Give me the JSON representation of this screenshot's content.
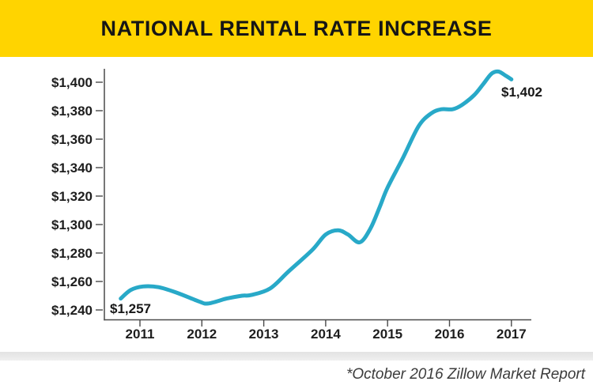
{
  "header": {
    "title": "NATIONAL RENTAL RATE INCREASE",
    "background_color": "#ffd400",
    "text_color": "#161616"
  },
  "chart_data": {
    "type": "line",
    "title": "NATIONAL RENTAL RATE INCREASE",
    "xlabel": "",
    "ylabel": "",
    "grid": false,
    "legend": "none",
    "line_color": "#28a9c8",
    "x_range": [
      2010.55,
      2017.3
    ],
    "y_range": [
      1233,
      1412
    ],
    "x_ticks": [
      {
        "value": 2011,
        "label": "2011"
      },
      {
        "value": 2012,
        "label": "2012"
      },
      {
        "value": 2013,
        "label": "2013"
      },
      {
        "value": 2014,
        "label": "2014"
      },
      {
        "value": 2015,
        "label": "2015"
      },
      {
        "value": 2016,
        "label": "2016"
      },
      {
        "value": 2017,
        "label": "2017"
      }
    ],
    "y_ticks": [
      {
        "value": 1240,
        "label": "$1,240"
      },
      {
        "value": 1260,
        "label": "$1,260"
      },
      {
        "value": 1280,
        "label": "$1,280"
      },
      {
        "value": 1300,
        "label": "$1,300"
      },
      {
        "value": 1320,
        "label": "$1,320"
      },
      {
        "value": 1340,
        "label": "$1,340"
      },
      {
        "value": 1360,
        "label": "$1,360"
      },
      {
        "value": 1380,
        "label": "$1,380"
      },
      {
        "value": 1400,
        "label": "$1,400"
      }
    ],
    "series": [
      {
        "name": "Rental rate",
        "color": "#28a9c8",
        "points": [
          [
            2010.69,
            1248
          ],
          [
            2010.85,
            1254
          ],
          [
            2011.05,
            1256.5
          ],
          [
            2011.3,
            1256
          ],
          [
            2011.6,
            1252
          ],
          [
            2011.95,
            1246
          ],
          [
            2012.1,
            1244.5
          ],
          [
            2012.4,
            1248
          ],
          [
            2012.65,
            1250
          ],
          [
            2012.8,
            1250.5
          ],
          [
            2013.1,
            1255
          ],
          [
            2013.4,
            1267
          ],
          [
            2013.78,
            1282
          ],
          [
            2014.0,
            1293
          ],
          [
            2014.2,
            1296
          ],
          [
            2014.36,
            1293
          ],
          [
            2014.55,
            1287.5
          ],
          [
            2014.72,
            1297
          ],
          [
            2014.87,
            1312
          ],
          [
            2015.0,
            1326
          ],
          [
            2015.25,
            1347
          ],
          [
            2015.5,
            1369
          ],
          [
            2015.7,
            1378
          ],
          [
            2015.87,
            1381
          ],
          [
            2016.05,
            1381
          ],
          [
            2016.2,
            1384
          ],
          [
            2016.4,
            1391
          ],
          [
            2016.55,
            1399
          ],
          [
            2016.68,
            1406
          ],
          [
            2016.79,
            1407.5
          ],
          [
            2016.91,
            1404.5
          ],
          [
            2017.0,
            1402
          ]
        ]
      }
    ],
    "annotations": [
      {
        "text": "$1,257",
        "year": 2011,
        "value": 1257,
        "position": "start-of-line"
      },
      {
        "text": "$1,402",
        "year": 2017,
        "value": 1402,
        "position": "end-of-line"
      }
    ]
  },
  "footer": {
    "source_note": "*October 2016 Zillow Market Report"
  }
}
